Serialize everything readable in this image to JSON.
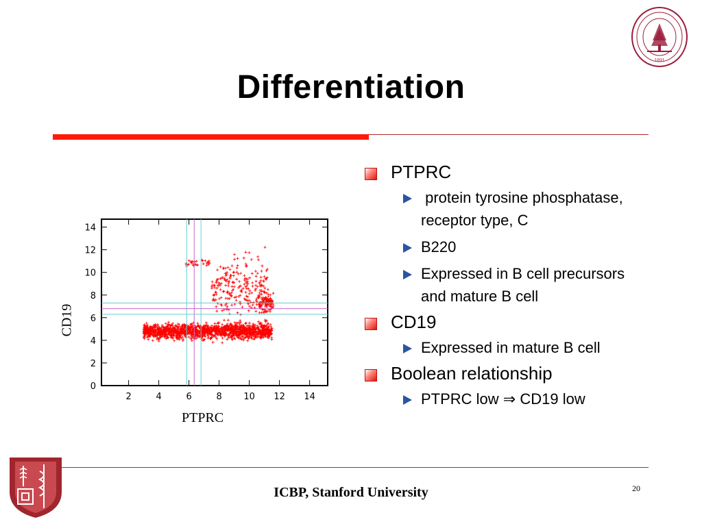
{
  "slide": {
    "title": "Differentiation",
    "footer": "ICBP, Stanford University",
    "page_number": "20",
    "seal_text": "LELAND STANFORD JUNIOR UNIVERSITY",
    "seal_year": "1891"
  },
  "bullets": [
    {
      "text": "PTPRC",
      "sub": [
        {
          "text": " protein tyrosine phosphatase, receptor type, C"
        },
        {
          "text": "B220"
        },
        {
          "text": "Expressed in B cell precursors and mature B cell"
        }
      ]
    },
    {
      "text": "CD19",
      "sub": [
        {
          "text": "Expressed in mature B cell"
        }
      ]
    },
    {
      "text": "Boolean relationship",
      "sub": [
        {
          "text": "PTPRC low ⇒ CD19 low"
        }
      ]
    }
  ],
  "chart_data": {
    "type": "scatter",
    "xlabel": "PTPRC",
    "ylabel": "CD19",
    "xlim": [
      0.2,
      15.2
    ],
    "ylim": [
      0,
      14.7
    ],
    "xticks": [
      2,
      4,
      6,
      8,
      10,
      12,
      14
    ],
    "yticks": [
      0,
      2,
      4,
      6,
      8,
      10,
      12,
      14
    ],
    "point_color": "#ff0000",
    "threshold_lines": {
      "vertical": [
        {
          "x": 5.85,
          "color": "#66cccc"
        },
        {
          "x": 6.35,
          "color": "#cc66cc"
        },
        {
          "x": 6.8,
          "color": "#66cccc"
        }
      ],
      "horizontal": [
        {
          "y": 6.3,
          "color": "#66cccc"
        },
        {
          "y": 6.8,
          "color": "#cc66cc"
        },
        {
          "y": 7.3,
          "color": "#66cccc"
        }
      ]
    },
    "clusters": [
      {
        "name": "",
        "x_range": [
          3,
          11.5
        ],
        "y_center": 4.8,
        "y_spread": 0.45,
        "count": 1500
      },
      {
        "name": "",
        "x_range": [
          7.5,
          11.3
        ],
        "y_center": 8.5,
        "y_spread": 2.0,
        "count": 260
      },
      {
        "name": "",
        "x_range": [
          10.6,
          11.6
        ],
        "y_center": 7.3,
        "y_spread": 0.5,
        "count": 90
      },
      {
        "name": "",
        "x_range": [
          5.8,
          7.4
        ],
        "y_center": 10.8,
        "y_spread": 0.2,
        "count": 30
      }
    ]
  }
}
